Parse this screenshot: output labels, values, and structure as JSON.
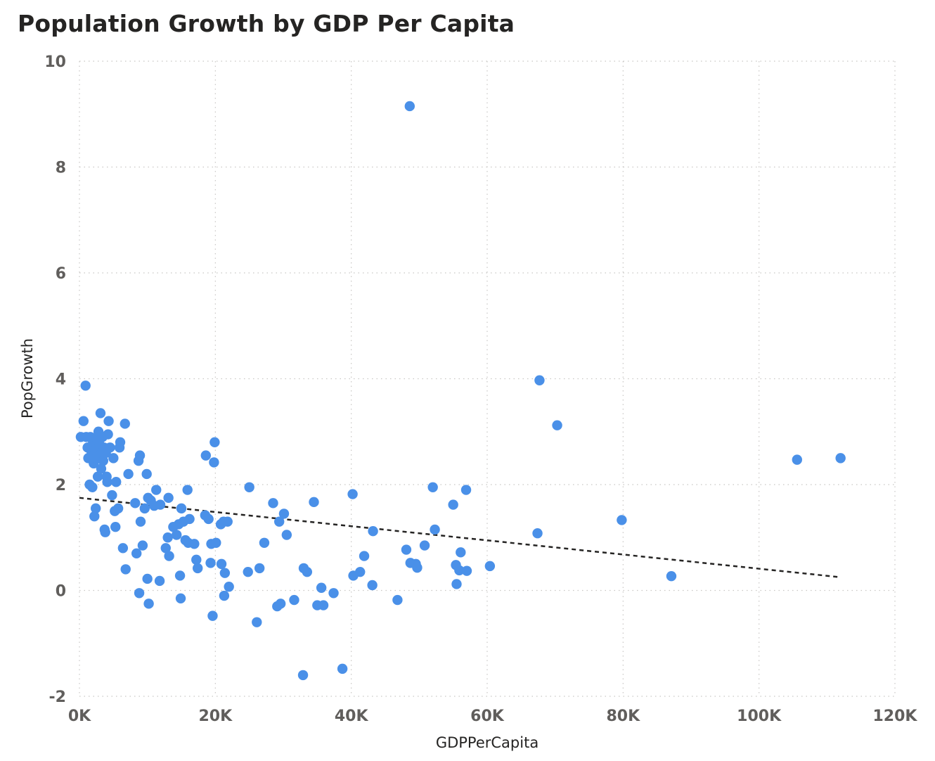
{
  "chart_data": {
    "type": "scatter",
    "title": "Population Growth by GDP Per Capita",
    "xlabel": "GDPPerCapita",
    "ylabel": "PopGrowth",
    "xlim": [
      0,
      120000
    ],
    "ylim": [
      -2,
      10
    ],
    "x_ticks": [
      0,
      20000,
      40000,
      60000,
      80000,
      100000,
      120000
    ],
    "x_tick_labels": [
      "0K",
      "20K",
      "40K",
      "60K",
      "80K",
      "100K",
      "120K"
    ],
    "y_ticks": [
      -2,
      0,
      2,
      4,
      6,
      8,
      10
    ],
    "y_tick_labels": [
      "-2",
      "0",
      "2",
      "4",
      "6",
      "8",
      "10"
    ],
    "grid": true,
    "point_color": "#4a90e8",
    "trendline": {
      "x": [
        0,
        112000
      ],
      "y": [
        1.75,
        0.25
      ],
      "style": "dashed",
      "color": "#252423"
    },
    "points": [
      {
        "x": 200,
        "y": 2.9
      },
      {
        "x": 600,
        "y": 3.2
      },
      {
        "x": 900,
        "y": 3.87
      },
      {
        "x": 1000,
        "y": 2.9
      },
      {
        "x": 1200,
        "y": 2.7
      },
      {
        "x": 1300,
        "y": 2.5
      },
      {
        "x": 1500,
        "y": 2.0
      },
      {
        "x": 1600,
        "y": 2.9
      },
      {
        "x": 1800,
        "y": 2.6
      },
      {
        "x": 1900,
        "y": 1.95
      },
      {
        "x": 2000,
        "y": 2.8
      },
      {
        "x": 2100,
        "y": 2.4
      },
      {
        "x": 2200,
        "y": 1.4
      },
      {
        "x": 2300,
        "y": 2.65
      },
      {
        "x": 2400,
        "y": 1.55
      },
      {
        "x": 2500,
        "y": 2.5
      },
      {
        "x": 2600,
        "y": 2.85
      },
      {
        "x": 2700,
        "y": 2.15
      },
      {
        "x": 2800,
        "y": 3.0
      },
      {
        "x": 2900,
        "y": 2.55
      },
      {
        "x": 3000,
        "y": 2.75
      },
      {
        "x": 3100,
        "y": 3.35
      },
      {
        "x": 3200,
        "y": 2.3
      },
      {
        "x": 3300,
        "y": 2.6
      },
      {
        "x": 3400,
        "y": 2.9
      },
      {
        "x": 3500,
        "y": 2.45
      },
      {
        "x": 3600,
        "y": 2.7
      },
      {
        "x": 3700,
        "y": 1.15
      },
      {
        "x": 3800,
        "y": 1.1
      },
      {
        "x": 3900,
        "y": 2.6
      },
      {
        "x": 4000,
        "y": 2.15
      },
      {
        "x": 4100,
        "y": 2.05
      },
      {
        "x": 4200,
        "y": 2.95
      },
      {
        "x": 4300,
        "y": 3.2
      },
      {
        "x": 4500,
        "y": 2.7
      },
      {
        "x": 4800,
        "y": 1.8
      },
      {
        "x": 5000,
        "y": 2.5
      },
      {
        "x": 5200,
        "y": 1.5
      },
      {
        "x": 5300,
        "y": 1.2
      },
      {
        "x": 5400,
        "y": 2.05
      },
      {
        "x": 5700,
        "y": 1.55
      },
      {
        "x": 5900,
        "y": 2.7
      },
      {
        "x": 6000,
        "y": 2.8
      },
      {
        "x": 6400,
        "y": 0.8
      },
      {
        "x": 6700,
        "y": 3.15
      },
      {
        "x": 6800,
        "y": 0.4
      },
      {
        "x": 7200,
        "y": 2.2
      },
      {
        "x": 8200,
        "y": 1.65
      },
      {
        "x": 8400,
        "y": 0.7
      },
      {
        "x": 8700,
        "y": 2.45
      },
      {
        "x": 8800,
        "y": -0.05
      },
      {
        "x": 8900,
        "y": 2.55
      },
      {
        "x": 9000,
        "y": 1.3
      },
      {
        "x": 9300,
        "y": 0.85
      },
      {
        "x": 9600,
        "y": 1.55
      },
      {
        "x": 9900,
        "y": 2.2
      },
      {
        "x": 10000,
        "y": 0.22
      },
      {
        "x": 10100,
        "y": 1.75
      },
      {
        "x": 10200,
        "y": -0.25
      },
      {
        "x": 10500,
        "y": 1.7
      },
      {
        "x": 11000,
        "y": 1.6
      },
      {
        "x": 11300,
        "y": 1.9
      },
      {
        "x": 11800,
        "y": 0.18
      },
      {
        "x": 11900,
        "y": 1.62
      },
      {
        "x": 12700,
        "y": 0.8
      },
      {
        "x": 13000,
        "y": 1.0
      },
      {
        "x": 13100,
        "y": 1.75
      },
      {
        "x": 13200,
        "y": 0.65
      },
      {
        "x": 13800,
        "y": 1.2
      },
      {
        "x": 14300,
        "y": 1.05
      },
      {
        "x": 14600,
        "y": 1.25
      },
      {
        "x": 14800,
        "y": 0.28
      },
      {
        "x": 14900,
        "y": -0.15
      },
      {
        "x": 15000,
        "y": 1.55
      },
      {
        "x": 15300,
        "y": 1.3
      },
      {
        "x": 15600,
        "y": 0.95
      },
      {
        "x": 15900,
        "y": 1.9
      },
      {
        "x": 16000,
        "y": 0.9
      },
      {
        "x": 16200,
        "y": 1.35
      },
      {
        "x": 16900,
        "y": 0.88
      },
      {
        "x": 17200,
        "y": 0.58
      },
      {
        "x": 17400,
        "y": 0.42
      },
      {
        "x": 18500,
        "y": 1.42
      },
      {
        "x": 18600,
        "y": 2.55
      },
      {
        "x": 19000,
        "y": 1.35
      },
      {
        "x": 19300,
        "y": 0.52
      },
      {
        "x": 19400,
        "y": 0.88
      },
      {
        "x": 19600,
        "y": -0.48
      },
      {
        "x": 19800,
        "y": 2.42
      },
      {
        "x": 19900,
        "y": 2.8
      },
      {
        "x": 20100,
        "y": 0.9
      },
      {
        "x": 20800,
        "y": 1.25
      },
      {
        "x": 20900,
        "y": 0.5
      },
      {
        "x": 21200,
        "y": 1.3
      },
      {
        "x": 21300,
        "y": -0.1
      },
      {
        "x": 21400,
        "y": 0.33
      },
      {
        "x": 21800,
        "y": 1.3
      },
      {
        "x": 22000,
        "y": 0.07
      },
      {
        "x": 24800,
        "y": 0.35
      },
      {
        "x": 25000,
        "y": 1.95
      },
      {
        "x": 26100,
        "y": -0.6
      },
      {
        "x": 26500,
        "y": 0.42
      },
      {
        "x": 27200,
        "y": 0.9
      },
      {
        "x": 28500,
        "y": 1.65
      },
      {
        "x": 29100,
        "y": -0.3
      },
      {
        "x": 29400,
        "y": 1.3
      },
      {
        "x": 29600,
        "y": -0.25
      },
      {
        "x": 30100,
        "y": 1.45
      },
      {
        "x": 30500,
        "y": 1.05
      },
      {
        "x": 31600,
        "y": -0.18
      },
      {
        "x": 32900,
        "y": -1.6
      },
      {
        "x": 33000,
        "y": 0.42
      },
      {
        "x": 33500,
        "y": 0.35
      },
      {
        "x": 34500,
        "y": 1.67
      },
      {
        "x": 35000,
        "y": -0.28
      },
      {
        "x": 35600,
        "y": 0.05
      },
      {
        "x": 35900,
        "y": -0.28
      },
      {
        "x": 37400,
        "y": -0.05
      },
      {
        "x": 38700,
        "y": -1.48
      },
      {
        "x": 40200,
        "y": 1.82
      },
      {
        "x": 40300,
        "y": 0.28
      },
      {
        "x": 41300,
        "y": 0.35
      },
      {
        "x": 41900,
        "y": 0.65
      },
      {
        "x": 43100,
        "y": 0.1
      },
      {
        "x": 43200,
        "y": 1.12
      },
      {
        "x": 46800,
        "y": -0.18
      },
      {
        "x": 48100,
        "y": 0.77
      },
      {
        "x": 48600,
        "y": 9.15
      },
      {
        "x": 48700,
        "y": 0.52
      },
      {
        "x": 49500,
        "y": 0.5
      },
      {
        "x": 49700,
        "y": 0.43
      },
      {
        "x": 50800,
        "y": 0.85
      },
      {
        "x": 52000,
        "y": 1.95
      },
      {
        "x": 52300,
        "y": 1.15
      },
      {
        "x": 55000,
        "y": 1.62
      },
      {
        "x": 55400,
        "y": 0.48
      },
      {
        "x": 55500,
        "y": 0.12
      },
      {
        "x": 55900,
        "y": 0.38
      },
      {
        "x": 56100,
        "y": 0.72
      },
      {
        "x": 56900,
        "y": 1.9
      },
      {
        "x": 57000,
        "y": 0.37
      },
      {
        "x": 60400,
        "y": 0.46
      },
      {
        "x": 67400,
        "y": 1.08
      },
      {
        "x": 67700,
        "y": 3.97
      },
      {
        "x": 70300,
        "y": 3.12
      },
      {
        "x": 79800,
        "y": 1.33
      },
      {
        "x": 87100,
        "y": 0.27
      },
      {
        "x": 105600,
        "y": 2.47
      },
      {
        "x": 112000,
        "y": 2.5
      }
    ]
  }
}
